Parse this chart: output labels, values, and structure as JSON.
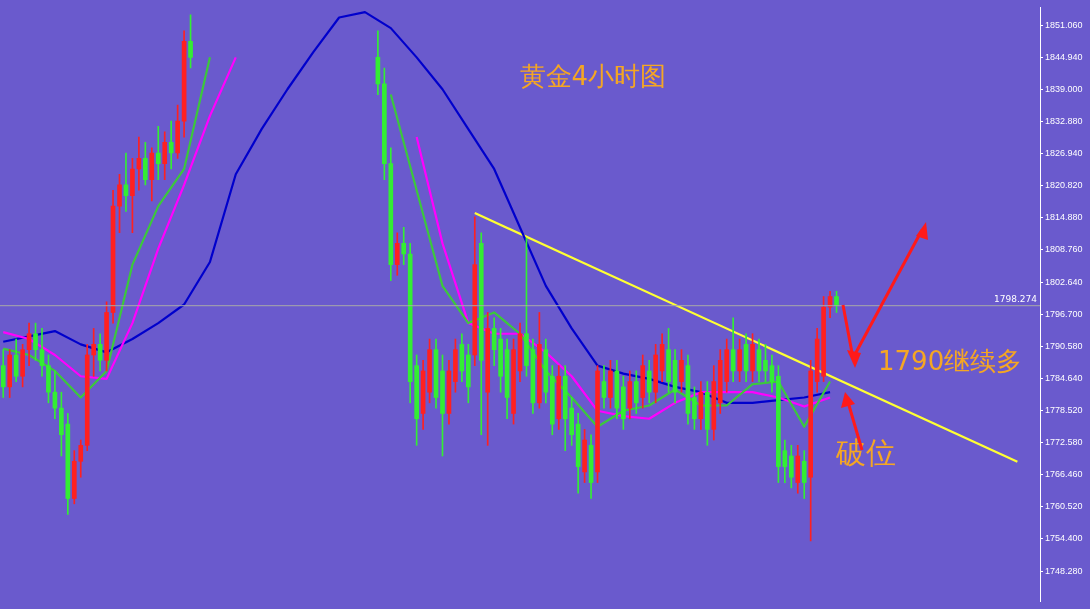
{
  "chart_data": {
    "type": "candlestick",
    "title": "黄金4小时图",
    "annotations": [
      "1790继续多",
      "破位"
    ],
    "tick_labels": "y",
    "marker": "none",
    "categories": [
      null,
      null,
      null,
      null,
      null,
      null,
      null,
      null,
      null,
      null,
      null,
      null,
      null,
      null,
      null,
      null,
      null,
      null,
      null,
      null,
      null,
      null,
      null,
      null,
      null,
      null,
      null,
      null,
      null,
      null,
      null,
      null,
      null,
      null,
      null,
      null,
      null,
      null,
      null,
      null,
      null,
      null,
      null,
      null,
      null,
      null,
      null,
      null,
      null,
      null,
      null,
      null,
      null,
      null,
      null,
      null,
      null,
      null,
      null,
      null,
      null,
      null,
      null,
      null,
      null,
      null,
      null,
      null,
      null,
      null,
      null,
      null,
      null,
      null,
      null,
      null,
      null,
      null,
      null,
      null,
      null,
      null,
      null,
      null,
      null,
      null,
      null,
      null,
      null,
      null,
      null,
      null,
      null,
      null,
      null,
      null,
      null,
      null,
      null,
      null,
      null,
      null,
      null,
      null,
      null,
      null,
      null,
      null,
      null,
      null,
      null,
      null,
      null,
      null,
      null,
      null,
      null,
      null,
      null,
      null,
      null,
      null,
      null,
      null,
      null,
      null,
      null,
      null,
      null,
      null,
      null,
      null,
      null,
      null,
      null,
      null,
      null,
      null,
      null,
      null,
      null,
      null,
      null,
      null,
      null,
      null,
      null,
      null,
      null,
      null,
      null,
      null,
      null,
      null,
      null,
      null,
      null,
      null,
      null,
      null,
      null
    ],
    "ohlc": [
      [
        1787,
        1790,
        1781,
        1783
      ],
      [
        1783,
        1790,
        1781,
        1789
      ],
      [
        1789,
        1792,
        1784,
        1785
      ],
      [
        1785,
        1791,
        1783,
        1790
      ],
      [
        1790,
        1795,
        1787,
        1793
      ],
      [
        1793,
        1795,
        1788,
        1790
      ],
      [
        1790,
        1794,
        1785,
        1787
      ],
      [
        1787,
        1789,
        1780,
        1782
      ],
      [
        1782,
        1786,
        1777,
        1779
      ],
      [
        1779,
        1782,
        1770,
        1774
      ],
      [
        1776,
        1778,
        1759,
        1762
      ],
      [
        1762,
        1771,
        1761,
        1769
      ],
      [
        1769,
        1773,
        1766,
        1772
      ],
      [
        1772,
        1791,
        1771,
        1789
      ],
      [
        1789,
        1794,
        1785,
        1791
      ],
      [
        1791,
        1793,
        1786,
        1788
      ],
      [
        1788,
        1799,
        1786,
        1797
      ],
      [
        1797,
        1820,
        1795,
        1817
      ],
      [
        1817,
        1823,
        1812,
        1821
      ],
      [
        1821,
        1827,
        1816,
        1819
      ],
      [
        1819,
        1826,
        1812,
        1824
      ],
      [
        1824,
        1830,
        1820,
        1826
      ],
      [
        1826,
        1829,
        1821,
        1822
      ],
      [
        1822,
        1828,
        1818,
        1827
      ],
      [
        1827,
        1832,
        1822,
        1825
      ],
      [
        1825,
        1831,
        1822,
        1829
      ],
      [
        1829,
        1833,
        1824,
        1827
      ],
      [
        1827,
        1836,
        1826,
        1833
      ],
      [
        1833,
        1850,
        1830,
        1848
      ],
      [
        1848,
        1853,
        1843,
        1845
      ],
      null,
      null,
      null,
      null,
      null,
      null,
      null,
      null,
      null,
      null,
      null,
      null,
      null,
      null,
      null,
      null,
      null,
      null,
      null,
      null,
      null,
      null,
      null,
      null,
      null,
      null,
      null,
      null,
      [
        1845,
        1850,
        1838,
        1840
      ],
      [
        1840,
        1843,
        1822,
        1825
      ],
      [
        1825,
        1828,
        1803,
        1806
      ],
      [
        1806,
        1812,
        1804,
        1810
      ],
      [
        1810,
        1813,
        1806,
        1808
      ],
      [
        1808,
        1810,
        1780,
        1784
      ],
      [
        1787,
        1789,
        1772,
        1777
      ],
      [
        1778,
        1788,
        1775,
        1786
      ],
      [
        1782,
        1792,
        1780,
        1790
      ],
      [
        1790,
        1792,
        1779,
        1781
      ],
      [
        1786,
        1789,
        1770,
        1778
      ],
      [
        1778,
        1788,
        1776,
        1786
      ],
      [
        1784,
        1792,
        1782,
        1790
      ],
      [
        1791,
        1793,
        1784,
        1786
      ],
      [
        1789,
        1791,
        1780,
        1783
      ],
      [
        1789,
        1815,
        1787,
        1806
      ],
      [
        1810,
        1812,
        1774,
        1788
      ],
      [
        1782,
        1797,
        1772,
        1794
      ],
      [
        1794,
        1796,
        1787,
        1790
      ],
      [
        1792,
        1794,
        1782,
        1785
      ],
      [
        1790,
        1792,
        1777,
        1781
      ],
      [
        1778,
        1792,
        1776,
        1790
      ],
      [
        1786,
        1795,
        1784,
        1793
      ],
      [
        1793,
        1811,
        1785,
        1787
      ],
      [
        1790,
        1792,
        1778,
        1780
      ],
      [
        1780,
        1797,
        1779,
        1791
      ],
      [
        1790,
        1792,
        1780,
        1782
      ],
      [
        1785,
        1787,
        1774,
        1776
      ],
      [
        1777,
        1787,
        1775,
        1785
      ],
      [
        1785,
        1787,
        1771,
        1777
      ],
      [
        1779,
        1781,
        1772,
        1774
      ],
      [
        1776,
        1778,
        1763,
        1768
      ],
      [
        1767,
        1775,
        1765,
        1773
      ],
      [
        1772,
        1774,
        1762,
        1765
      ],
      [
        1767,
        1787,
        1765,
        1786
      ],
      [
        1784,
        1787,
        1779,
        1781
      ],
      [
        1781,
        1788,
        1779,
        1786
      ],
      [
        1786,
        1788,
        1777,
        1779
      ],
      [
        1783,
        1785,
        1775,
        1777
      ],
      [
        1779,
        1786,
        1777,
        1784
      ],
      [
        1784,
        1786,
        1778,
        1780
      ],
      [
        1781,
        1789,
        1779,
        1787
      ],
      [
        1786,
        1788,
        1780,
        1782
      ],
      [
        1782,
        1791,
        1780,
        1789
      ],
      [
        1786,
        1793,
        1784,
        1791
      ],
      [
        1790,
        1794,
        1782,
        1784
      ],
      [
        1788,
        1790,
        1780,
        1782
      ],
      [
        1784,
        1790,
        1782,
        1788
      ],
      [
        1787,
        1789,
        1776,
        1778
      ],
      [
        1781,
        1783,
        1775,
        1777
      ],
      [
        1777,
        1784,
        1775,
        1782
      ],
      [
        1782,
        1784,
        1772,
        1775
      ],
      [
        1775,
        1787,
        1773,
        1784
      ],
      [
        1780,
        1790,
        1778,
        1788
      ],
      [
        1784,
        1792,
        1782,
        1790
      ],
      [
        1790,
        1796,
        1784,
        1786
      ],
      [
        1786,
        1792,
        1784,
        1790
      ],
      [
        1791,
        1793,
        1784,
        1786
      ],
      [
        1786,
        1793,
        1784,
        1791
      ],
      [
        1790,
        1792,
        1784,
        1786
      ],
      [
        1788,
        1791,
        1784,
        1786
      ],
      [
        1787,
        1789,
        1782,
        1784
      ],
      [
        1785,
        1787,
        1765,
        1768
      ],
      [
        1771,
        1773,
        1765,
        1768
      ],
      [
        1770,
        1772,
        1764,
        1766
      ],
      [
        1765,
        1772,
        1763,
        1770
      ],
      [
        1769,
        1771,
        1762,
        1765
      ],
      [
        1766,
        1788,
        1754,
        1786
      ],
      [
        1784,
        1794,
        1782,
        1792
      ],
      [
        1785,
        1800,
        1784,
        1798
      ],
      [
        1798,
        1801,
        1796,
        1800
      ],
      [
        1800,
        1801,
        1797,
        1798.274
      ],
      null,
      null,
      null,
      null,
      null,
      null,
      null,
      null,
      null,
      null,
      null,
      null,
      null,
      null,
      null,
      null,
      null,
      null,
      null,
      null,
      null,
      null,
      null,
      null,
      null,
      null,
      null,
      null,
      null,
      null,
      null
    ],
    "colors": [
      "#33ee33",
      "#ff2020",
      "#33ee33",
      "#ff2020",
      "#ff2020",
      "#33ee33",
      "#33ee33",
      "#33ee33",
      "#33ee33",
      "#33ee33",
      "#33ee33",
      "#ff2020",
      "#ff2020",
      "#ff2020",
      "#ff2020",
      "#33ee33",
      "#ff2020",
      "#ff2020",
      "#ff2020",
      "#33ee33",
      "#ff2020",
      "#ff2020",
      "#33ee33",
      "#ff2020",
      "#33ee33",
      "#ff2020",
      "#33ee33",
      "#ff2020",
      "#ff2020",
      "#33ee33",
      null,
      null,
      null,
      null,
      null,
      null,
      null,
      null,
      null,
      null,
      null,
      null,
      null,
      null,
      null,
      null,
      null,
      null,
      null,
      null,
      null,
      null,
      null,
      null,
      null,
      null,
      null,
      null,
      "#33ee33",
      "#33ee33",
      "#33ee33",
      "#ff2020",
      "#33ee33",
      "#33ee33",
      "#33ee33",
      "#ff2020",
      "#ff2020",
      "#33ee33",
      "#33ee33",
      "#ff2020",
      "#ff2020",
      "#33ee33",
      "#33ee33",
      "#ff2020",
      "#33ee33",
      "#ff2020",
      "#33ee33",
      "#33ee33",
      "#33ee33",
      "#ff2020",
      "#ff2020",
      "#33ee33",
      "#33ee33",
      "#ff2020",
      "#33ee33",
      "#33ee33",
      "#ff2020",
      "#33ee33",
      "#33ee33",
      "#33ee33",
      "#ff2020",
      "#33ee33",
      "#ff2020",
      "#33ee33",
      "#ff2020",
      "#33ee33",
      "#33ee33",
      "#ff2020",
      "#33ee33",
      "#ff2020",
      "#33ee33",
      "#ff2020",
      "#ff2020",
      "#33ee33",
      "#33ee33",
      "#ff2020",
      "#33ee33",
      "#33ee33",
      "#ff2020",
      "#33ee33",
      "#ff2020",
      "#ff2020",
      "#ff2020",
      "#33ee33",
      "#ff2020",
      "#33ee33",
      "#ff2020",
      "#33ee33",
      "#33ee33",
      "#33ee33",
      "#33ee33",
      "#33ee33",
      "#33ee33",
      "#ff2020",
      "#33ee33",
      "#ff2020",
      "#ff2020",
      "#ff2020",
      "#ff2020",
      "#33ee33",
      null,
      null,
      null,
      null,
      null,
      null,
      null,
      null,
      null,
      null,
      null,
      null,
      null,
      null,
      null,
      null,
      null,
      null,
      null,
      null,
      null,
      null,
      null,
      null,
      null,
      null,
      null,
      null,
      null,
      null,
      null
    ],
    "series": [
      {
        "type": "line",
        "color": "#3cc83c",
        "values": [
          1790.2,
          null,
          null,
          null,
          1789,
          null,
          null,
          null,
          1786,
          null,
          null,
          null,
          1781,
          null,
          null,
          null,
          1786,
          null,
          null,
          null,
          1806,
          null,
          null,
          null,
          1817,
          null,
          null,
          null,
          1824,
          null,
          null,
          null,
          1845,
          null,
          null,
          null,
          null,
          null,
          null,
          null,
          null,
          null,
          null,
          null,
          null,
          null,
          null,
          null,
          null,
          null,
          null,
          null,
          null,
          null,
          null,
          null,
          null,
          null,
          null,
          null,
          1838,
          null,
          null,
          null,
          1820,
          null,
          null,
          null,
          1802,
          null,
          null,
          null,
          1795,
          null,
          null,
          null,
          1797,
          null,
          null,
          null,
          1793,
          null,
          null,
          null,
          1786,
          null,
          null,
          null,
          1781,
          null,
          null,
          null,
          1775.5,
          null,
          null,
          null,
          1778.5,
          null,
          null,
          null,
          1779.5,
          null,
          null,
          null,
          1782.5,
          null,
          null,
          null,
          1779.5,
          null,
          null,
          null,
          1779.5,
          null,
          null,
          null,
          1783.5,
          null,
          null,
          null,
          1784,
          null,
          null,
          null,
          1775.5,
          null,
          null,
          null,
          1784,
          null,
          null,
          null,
          null,
          null,
          null,
          null,
          null,
          null,
          null,
          null,
          null,
          null,
          null,
          null,
          null,
          null,
          null,
          null,
          null,
          null,
          null,
          null,
          null,
          null,
          null,
          null,
          null,
          null,
          null,
          null,
          null
        ]
      },
      {
        "type": "line",
        "color": "#ff00ff",
        "values": [
          1793.3,
          null,
          null,
          null,
          1792,
          null,
          null,
          null,
          1789,
          null,
          null,
          null,
          1785,
          null,
          null,
          null,
          1784.5,
          null,
          null,
          null,
          1795,
          null,
          null,
          null,
          1809,
          null,
          null,
          null,
          1821,
          null,
          null,
          null,
          1834,
          null,
          null,
          null,
          1845,
          null,
          null,
          null,
          null,
          null,
          null,
          null,
          null,
          null,
          null,
          null,
          null,
          null,
          null,
          null,
          null,
          null,
          null,
          null,
          null,
          null,
          null,
          null,
          null,
          null,
          null,
          null,
          1830,
          null,
          null,
          null,
          1810,
          null,
          null,
          null,
          1795,
          null,
          null,
          null,
          1793,
          null,
          null,
          null,
          1793,
          null,
          null,
          null,
          1789.5,
          null,
          null,
          null,
          1785,
          null,
          null,
          null,
          1778.5,
          null,
          null,
          null,
          1777.5,
          null,
          null,
          null,
          1777,
          null,
          null,
          null,
          1780,
          null,
          null,
          null,
          1782,
          null,
          null,
          null,
          1782,
          null,
          null,
          null,
          1782,
          null,
          null,
          null,
          1781,
          null,
          null,
          null,
          1779.3,
          null,
          null,
          null,
          1781,
          null,
          null,
          null,
          null,
          null,
          null,
          null,
          null,
          null,
          null,
          null,
          null,
          null,
          null,
          null,
          null,
          null,
          null,
          null,
          null,
          null,
          null,
          null,
          null,
          null,
          null,
          null,
          null,
          null,
          null,
          null,
          null
        ]
      },
      {
        "type": "line",
        "color": "#0000cc",
        "values": [
          1791.5,
          null,
          null,
          null,
          1792.5,
          null,
          null,
          null,
          1793.5,
          null,
          null,
          null,
          1791,
          null,
          null,
          null,
          1789.5,
          null,
          null,
          null,
          1792,
          null,
          null,
          null,
          1795,
          null,
          null,
          null,
          1798.5,
          null,
          null,
          null,
          1806.5,
          null,
          null,
          null,
          1823,
          null,
          null,
          null,
          1831.5,
          null,
          null,
          null,
          1839,
          null,
          null,
          null,
          1846,
          null,
          null,
          null,
          1852.5,
          null,
          null,
          null,
          1853.5,
          null,
          null,
          null,
          1850.5,
          null,
          null,
          null,
          1845,
          null,
          null,
          null,
          1839,
          null,
          null,
          null,
          1831.5,
          null,
          null,
          null,
          1824,
          null,
          null,
          null,
          1813,
          null,
          null,
          null,
          1802,
          null,
          null,
          null,
          1794,
          null,
          null,
          null,
          1787,
          null,
          null,
          null,
          1785.5,
          null,
          null,
          null,
          1784.5,
          null,
          null,
          null,
          1783,
          null,
          null,
          null,
          1782,
          null,
          null,
          null,
          1780,
          null,
          null,
          null,
          1780,
          null,
          null,
          null,
          1780.5,
          null,
          null,
          null,
          1781,
          null,
          null,
          null,
          1782,
          null,
          null,
          null,
          null,
          null,
          null,
          null,
          null,
          null,
          null,
          null,
          null,
          null,
          null,
          null,
          null,
          null,
          null,
          null,
          null,
          null,
          null,
          null,
          null,
          null,
          null,
          null,
          null,
          null,
          null,
          null,
          null
        ]
      },
      {
        "type": "line",
        "color": "#ffff33",
        "values": [
          null,
          null,
          null,
          null,
          null,
          null,
          null,
          null,
          null,
          null,
          null,
          null,
          null,
          null,
          null,
          null,
          null,
          null,
          null,
          null,
          null,
          null,
          null,
          null,
          null,
          null,
          null,
          null,
          null,
          null,
          null,
          null,
          null,
          null,
          null,
          null,
          null,
          null,
          null,
          null,
          null,
          null,
          null,
          null,
          null,
          null,
          null,
          null,
          null,
          null,
          null,
          null,
          null,
          null,
          null,
          null,
          null,
          null,
          null,
          null,
          null,
          null,
          null,
          null,
          null,
          null,
          null,
          null,
          null,
          null,
          null,
          null,
          null,
          1815.7,
          null,
          null,
          null,
          null,
          null,
          null,
          null,
          null,
          null,
          null,
          null,
          null,
          null,
          null,
          null,
          null,
          null,
          null,
          null,
          null,
          null,
          null,
          null,
          null,
          null,
          null,
          null,
          null,
          null,
          null,
          null,
          null,
          null,
          null,
          null,
          null,
          null,
          null,
          null,
          null,
          null,
          null,
          null,
          null,
          null,
          null,
          null,
          null,
          null,
          null,
          null,
          null,
          null,
          null,
          null,
          null,
          null,
          null,
          null,
          null,
          null,
          null,
          null,
          null,
          null,
          null,
          null,
          null,
          null,
          null,
          null,
          null,
          null,
          null,
          null,
          null,
          null,
          null,
          null,
          null,
          null,
          null,
          null,
          1768.9,
          null,
          null,
          null
        ]
      }
    ],
    "ref_lines": [
      {
        "axis": "y",
        "value": 1798.274,
        "label": "1798.274",
        "color": "#a8a8a8"
      }
    ],
    "ylim": [
      1742.6,
      1854.4
    ],
    "yticks": [
      {
        "value": 1851.06,
        "label": "1851.060"
      },
      {
        "value": 1844.94,
        "label": "1844.940"
      },
      {
        "value": 1839,
        "label": "1839.000"
      },
      {
        "value": 1832.88,
        "label": "1832.880"
      },
      {
        "value": 1826.94,
        "label": "1826.940"
      },
      {
        "value": 1820.82,
        "label": "1820.820"
      },
      {
        "value": 1814.88,
        "label": "1814.880"
      },
      {
        "value": 1808.76,
        "label": "1808.760"
      },
      {
        "value": 1802.64,
        "label": "1802.640"
      },
      {
        "value": 1796.7,
        "label": "1796.700"
      },
      {
        "value": 1790.58,
        "label": "1790.580"
      },
      {
        "value": 1784.64,
        "label": "1784.640"
      },
      {
        "value": 1778.52,
        "label": "1778.520"
      },
      {
        "value": 1772.58,
        "label": "1772.580"
      },
      {
        "value": 1766.46,
        "label": "1766.460"
      },
      {
        "value": 1760.52,
        "label": "1760.520"
      },
      {
        "value": 1754.4,
        "label": "1754.400"
      },
      {
        "value": 1748.28,
        "label": "1748.280"
      }
    ]
  }
}
